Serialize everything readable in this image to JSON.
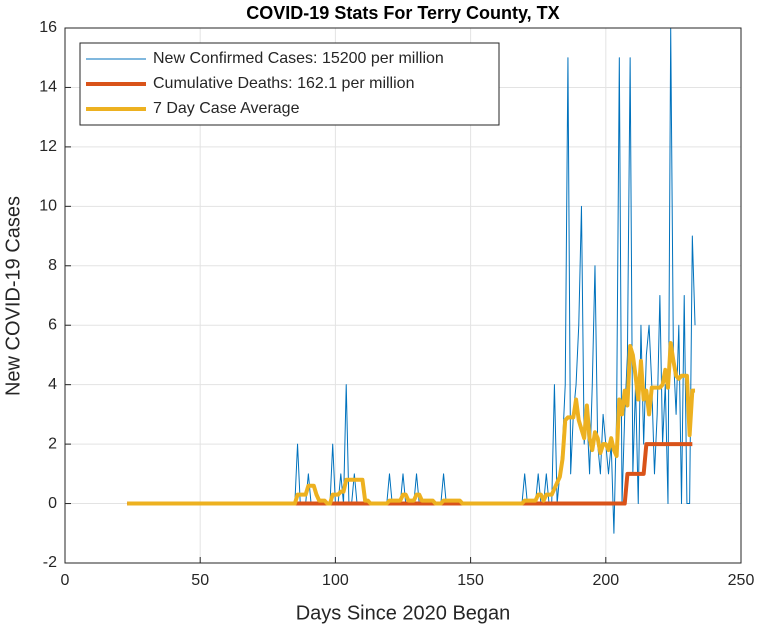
{
  "chart_data": {
    "type": "line",
    "title": "COVID-19 Stats For Terry County, TX",
    "xlabel": "Days Since 2020 Began",
    "ylabel": "New COVID-19 Cases",
    "xlim": [
      0,
      250
    ],
    "xticks": [
      0,
      50,
      100,
      150,
      200,
      250
    ],
    "ylim": [
      -2,
      16
    ],
    "yticks": [
      -2,
      0,
      2,
      4,
      6,
      8,
      10,
      12,
      14,
      16
    ],
    "grid": true,
    "legend": "upper left",
    "x": [
      23,
      24,
      25,
      26,
      27,
      28,
      29,
      30,
      31,
      32,
      33,
      34,
      35,
      36,
      37,
      38,
      39,
      40,
      41,
      42,
      43,
      44,
      45,
      46,
      47,
      48,
      49,
      50,
      51,
      52,
      53,
      54,
      55,
      56,
      57,
      58,
      59,
      60,
      61,
      62,
      63,
      64,
      65,
      66,
      67,
      68,
      69,
      70,
      71,
      72,
      73,
      74,
      75,
      76,
      77,
      78,
      79,
      80,
      81,
      82,
      83,
      84,
      85,
      86,
      87,
      88,
      89,
      90,
      91,
      92,
      93,
      94,
      95,
      96,
      97,
      98,
      99,
      100,
      101,
      102,
      103,
      104,
      105,
      106,
      107,
      108,
      109,
      110,
      111,
      112,
      113,
      114,
      115,
      116,
      117,
      118,
      119,
      120,
      121,
      122,
      123,
      124,
      125,
      126,
      127,
      128,
      129,
      130,
      131,
      132,
      133,
      134,
      135,
      136,
      137,
      138,
      139,
      140,
      141,
      142,
      143,
      144,
      145,
      146,
      147,
      148,
      149,
      150,
      151,
      152,
      153,
      154,
      155,
      156,
      157,
      158,
      159,
      160,
      161,
      162,
      163,
      164,
      165,
      166,
      167,
      168,
      169,
      170,
      171,
      172,
      173,
      174,
      175,
      176,
      177,
      178,
      179,
      180,
      181,
      182,
      183,
      184,
      185,
      186,
      187,
      188,
      189,
      190,
      191,
      192,
      193,
      194,
      195,
      196,
      197,
      198,
      199,
      200,
      201,
      202,
      203,
      204,
      205,
      206,
      207,
      208,
      209,
      210,
      211,
      212,
      213,
      214,
      215,
      216,
      217,
      218,
      219,
      220,
      221,
      222,
      223,
      224,
      225,
      226,
      227,
      228,
      229,
      230,
      231,
      232,
      233
    ],
    "series": [
      {
        "name": "New Confirmed Cases: 15200 per million",
        "color": "#0072BD",
        "width": 1,
        "values": [
          0,
          0,
          0,
          0,
          0,
          0,
          0,
          0,
          0,
          0,
          0,
          0,
          0,
          0,
          0,
          0,
          0,
          0,
          0,
          0,
          0,
          0,
          0,
          0,
          0,
          0,
          0,
          0,
          0,
          0,
          0,
          0,
          0,
          0,
          0,
          0,
          0,
          0,
          0,
          0,
          0,
          0,
          0,
          0,
          0,
          0,
          0,
          0,
          0,
          0,
          0,
          0,
          0,
          0,
          0,
          0,
          0,
          0,
          0,
          0,
          0,
          0,
          0,
          2,
          0,
          0,
          0,
          1,
          0,
          0,
          0,
          0,
          0,
          0,
          0,
          0,
          2,
          0,
          0,
          1,
          0,
          4,
          0,
          0,
          1,
          0,
          0,
          0,
          0,
          0,
          0,
          0,
          0,
          0,
          0,
          0,
          0,
          1,
          0,
          0,
          0,
          0,
          1,
          0,
          0,
          0,
          0,
          1,
          0,
          0,
          0,
          0,
          0,
          0,
          0,
          0,
          0,
          1,
          0,
          0,
          0,
          0,
          0,
          0,
          0,
          0,
          0,
          0,
          0,
          0,
          0,
          0,
          0,
          0,
          0,
          0,
          0,
          0,
          0,
          0,
          0,
          0,
          0,
          0,
          0,
          0,
          0,
          1,
          0,
          0,
          0,
          0,
          1,
          0,
          0,
          1,
          0,
          0,
          4,
          0,
          1,
          2,
          4,
          15,
          1,
          3,
          4,
          6,
          10,
          2,
          3,
          1,
          4,
          8,
          2,
          1,
          3,
          2,
          1,
          2,
          -1,
          3,
          15,
          0,
          3,
          5,
          15,
          1,
          4,
          0,
          6,
          2,
          5,
          6,
          4,
          1,
          3,
          7,
          2,
          4,
          0,
          16,
          5,
          3,
          6,
          0,
          7,
          0,
          0,
          9,
          6
        ]
      },
      {
        "name": "Cumulative Deaths: 162.1 per million",
        "color": "#D95319",
        "width": 4,
        "values": [
          0,
          0,
          0,
          0,
          0,
          0,
          0,
          0,
          0,
          0,
          0,
          0,
          0,
          0,
          0,
          0,
          0,
          0,
          0,
          0,
          0,
          0,
          0,
          0,
          0,
          0,
          0,
          0,
          0,
          0,
          0,
          0,
          0,
          0,
          0,
          0,
          0,
          0,
          0,
          0,
          0,
          0,
          0,
          0,
          0,
          0,
          0,
          0,
          0,
          0,
          0,
          0,
          0,
          0,
          0,
          0,
          0,
          0,
          0,
          0,
          0,
          0,
          0,
          0,
          0,
          0,
          0,
          0,
          0,
          0,
          0,
          0,
          0,
          0,
          0,
          0,
          0,
          0,
          0,
          0,
          0,
          0,
          0,
          0,
          0,
          0,
          0,
          0,
          0,
          0,
          0,
          0,
          0,
          0,
          0,
          0,
          0,
          0,
          0,
          0,
          0,
          0,
          0,
          0,
          0,
          0,
          0,
          0,
          0,
          0,
          0,
          0,
          0,
          0,
          0,
          0,
          0,
          0,
          0,
          0,
          0,
          0,
          0,
          0,
          0,
          0,
          0,
          0,
          0,
          0,
          0,
          0,
          0,
          0,
          0,
          0,
          0,
          0,
          0,
          0,
          0,
          0,
          0,
          0,
          0,
          0,
          0,
          0,
          0,
          0,
          0,
          0,
          0,
          0,
          0,
          0,
          0,
          0,
          0,
          0,
          0,
          0,
          0,
          0,
          0,
          0,
          0,
          0,
          0,
          0,
          0,
          0,
          0,
          0,
          0,
          0,
          0,
          0,
          0,
          0,
          0,
          0,
          0,
          0,
          0,
          1,
          1,
          1,
          1,
          1,
          1,
          1,
          2,
          2,
          2,
          2,
          2,
          2,
          2,
          2,
          2,
          2,
          2,
          2,
          2,
          2,
          2,
          2,
          2,
          2,
          null
        ]
      },
      {
        "name": "7 Day Case Average",
        "color": "#EDB120",
        "width": 4,
        "values": [
          0,
          0,
          0,
          0,
          0,
          0,
          0,
          0,
          0,
          0,
          0,
          0,
          0,
          0,
          0,
          0,
          0,
          0,
          0,
          0,
          0,
          0,
          0,
          0,
          0,
          0,
          0,
          0,
          0,
          0,
          0,
          0,
          0,
          0,
          0,
          0,
          0,
          0,
          0,
          0,
          0,
          0,
          0,
          0,
          0,
          0,
          0,
          0,
          0,
          0,
          0,
          0,
          0,
          0,
          0,
          0,
          0,
          0,
          0,
          0,
          0,
          0,
          0,
          0.3,
          0.3,
          0.3,
          0.3,
          0.6,
          0.6,
          0.6,
          0.3,
          0.1,
          0.1,
          0.1,
          0,
          0,
          0.3,
          0.3,
          0.3,
          0.4,
          0.4,
          0.8,
          0.8,
          0.8,
          0.8,
          0.8,
          0.8,
          0.8,
          0.1,
          0.1,
          0,
          0,
          0,
          0,
          0,
          0,
          0,
          0.1,
          0.1,
          0.1,
          0.1,
          0.1,
          0.3,
          0.3,
          0.1,
          0.1,
          0.1,
          0.3,
          0.3,
          0.1,
          0.1,
          0.1,
          0.1,
          0.1,
          0,
          0,
          0,
          0.1,
          0.1,
          0.1,
          0.1,
          0.1,
          0.1,
          0.1,
          0,
          0,
          0,
          0,
          0,
          0,
          0,
          0,
          0,
          0,
          0,
          0,
          0,
          0,
          0,
          0,
          0,
          0,
          0,
          0,
          0,
          0,
          0,
          0.1,
          0.1,
          0.1,
          0.1,
          0.1,
          0.3,
          0.3,
          0.1,
          0.3,
          0.3,
          0.3,
          0.5,
          0.7,
          0.9,
          1.5,
          2.8,
          2.9,
          2.9,
          2.9,
          3.5,
          2.8,
          2.5,
          2.2,
          3.3,
          2.2,
          1.8,
          2.4,
          2.2,
          1.7,
          2.0,
          2.0,
          1.8,
          2.2,
          1.8,
          1.6,
          3.5,
          3.0,
          3.8,
          3.3,
          5.3,
          5.0,
          4.3,
          3.5,
          4.8,
          3.5,
          3.8,
          3.0,
          3.9,
          3.9,
          3.9,
          3.9,
          4.0,
          4.5,
          3.9,
          5.4,
          4.8,
          4.3,
          4.2,
          4.3,
          4.3,
          4.3,
          2.3,
          3.8,
          3.8
        ]
      }
    ]
  }
}
